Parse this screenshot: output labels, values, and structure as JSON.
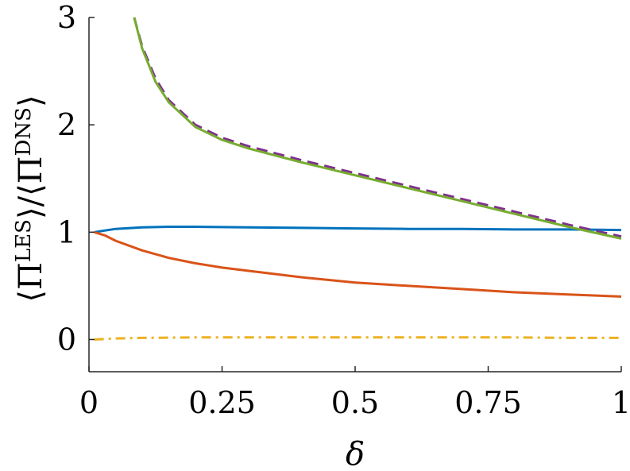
{
  "chart_data": {
    "type": "line",
    "xlabel": "δ",
    "ylabel": {
      "open": "⟨Π",
      "sup_les": "LES",
      "middle": "⟩/⟨Π",
      "sup_dns": "DNS",
      "close": "⟩"
    },
    "xlim": [
      0,
      1
    ],
    "ylim": [
      -0.3,
      3
    ],
    "xticks": [
      0,
      0.25,
      0.5,
      0.75,
      1
    ],
    "xtick_labels": [
      "0",
      "0.25",
      "0.5",
      "0.75",
      "1"
    ],
    "yticks": [
      0,
      1,
      2,
      3
    ],
    "ytick_labels": [
      "0",
      "1",
      "2",
      "3"
    ],
    "grid": false,
    "series": [
      {
        "color": "#0072BD",
        "style": "solid",
        "x": [
          0.01,
          0.05,
          0.1,
          0.15,
          0.2,
          0.3,
          0.4,
          0.5,
          0.6,
          0.7,
          0.8,
          0.9,
          1.0
        ],
        "y": [
          1.0,
          1.03,
          1.045,
          1.05,
          1.05,
          1.045,
          1.04,
          1.035,
          1.03,
          1.03,
          1.025,
          1.025,
          1.02
        ]
      },
      {
        "color": "#D95319",
        "style": "solid",
        "x": [
          0.01,
          0.03,
          0.05,
          0.1,
          0.15,
          0.2,
          0.25,
          0.3,
          0.4,
          0.5,
          0.6,
          0.7,
          0.8,
          0.9,
          1.0
        ],
        "y": [
          1.0,
          0.97,
          0.92,
          0.83,
          0.76,
          0.71,
          0.67,
          0.64,
          0.58,
          0.53,
          0.5,
          0.47,
          0.44,
          0.42,
          0.4
        ]
      },
      {
        "color": "#EDB120",
        "style": "dashdot",
        "x": [
          0.01,
          0.05,
          0.1,
          0.2,
          0.3,
          0.4,
          0.5,
          0.6,
          0.7,
          0.8,
          0.9,
          1.0
        ],
        "y": [
          0.0,
          0.01,
          0.015,
          0.02,
          0.02,
          0.02,
          0.02,
          0.02,
          0.02,
          0.02,
          0.015,
          0.015
        ]
      },
      {
        "color": "#7E2F8E",
        "style": "dashed",
        "x": [
          0.085,
          0.1,
          0.125,
          0.15,
          0.2,
          0.25,
          0.3,
          0.4,
          0.5,
          0.6,
          0.7,
          0.8,
          0.9,
          1.0
        ],
        "y": [
          3.0,
          2.73,
          2.43,
          2.23,
          2.0,
          1.88,
          1.8,
          1.67,
          1.55,
          1.43,
          1.31,
          1.19,
          1.07,
          0.96
        ]
      },
      {
        "color": "#77AC30",
        "style": "solid",
        "x": [
          0.085,
          0.1,
          0.125,
          0.15,
          0.2,
          0.25,
          0.3,
          0.4,
          0.5,
          0.6,
          0.7,
          0.8,
          0.9,
          1.0
        ],
        "y": [
          3.0,
          2.71,
          2.4,
          2.21,
          1.98,
          1.86,
          1.78,
          1.65,
          1.53,
          1.41,
          1.29,
          1.17,
          1.05,
          0.94
        ]
      }
    ]
  }
}
